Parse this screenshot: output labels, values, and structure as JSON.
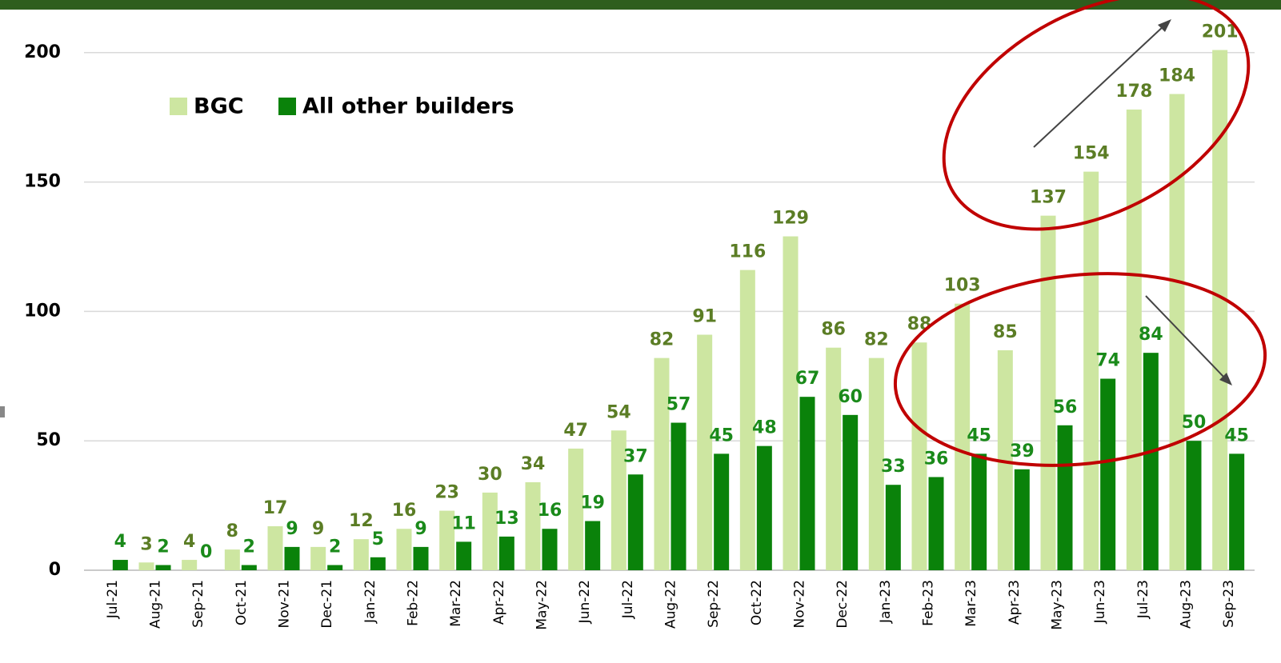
{
  "chart_data": {
    "type": "bar",
    "categories": [
      "Jul-21",
      "Aug-21",
      "Sep-21",
      "Oct-21",
      "Nov-21",
      "Dec-21",
      "Jan-22",
      "Feb-22",
      "Mar-22",
      "Apr-22",
      "May-22",
      "Jun-22",
      "Jul-22",
      "Aug-22",
      "Sep-22",
      "Oct-22",
      "Nov-22",
      "Dec-22",
      "Jan-23",
      "Feb-23",
      "Mar-23",
      "Apr-23",
      "May-23",
      "Jun-23",
      "Jul-23",
      "Aug-23",
      "Sep-23"
    ],
    "series": [
      {
        "name": "BGC",
        "color": "#cde6a1",
        "label_color": "#5b7d25",
        "values": [
          null,
          3,
          4,
          8,
          17,
          9,
          12,
          16,
          23,
          30,
          34,
          47,
          54,
          82,
          91,
          116,
          129,
          86,
          82,
          88,
          103,
          85,
          137,
          154,
          178,
          184,
          201
        ]
      },
      {
        "name": "All other builders",
        "color": "#0a820a",
        "label_color": "#1a8a1a",
        "values": [
          4,
          2,
          0,
          2,
          9,
          2,
          5,
          9,
          11,
          13,
          16,
          19,
          37,
          57,
          45,
          48,
          67,
          60,
          33,
          36,
          45,
          39,
          56,
          74,
          84,
          50,
          45
        ]
      }
    ],
    "ylim": [
      0,
      216
    ],
    "yticks": [
      0,
      50,
      100,
      150,
      200
    ],
    "grid": true
  }
}
